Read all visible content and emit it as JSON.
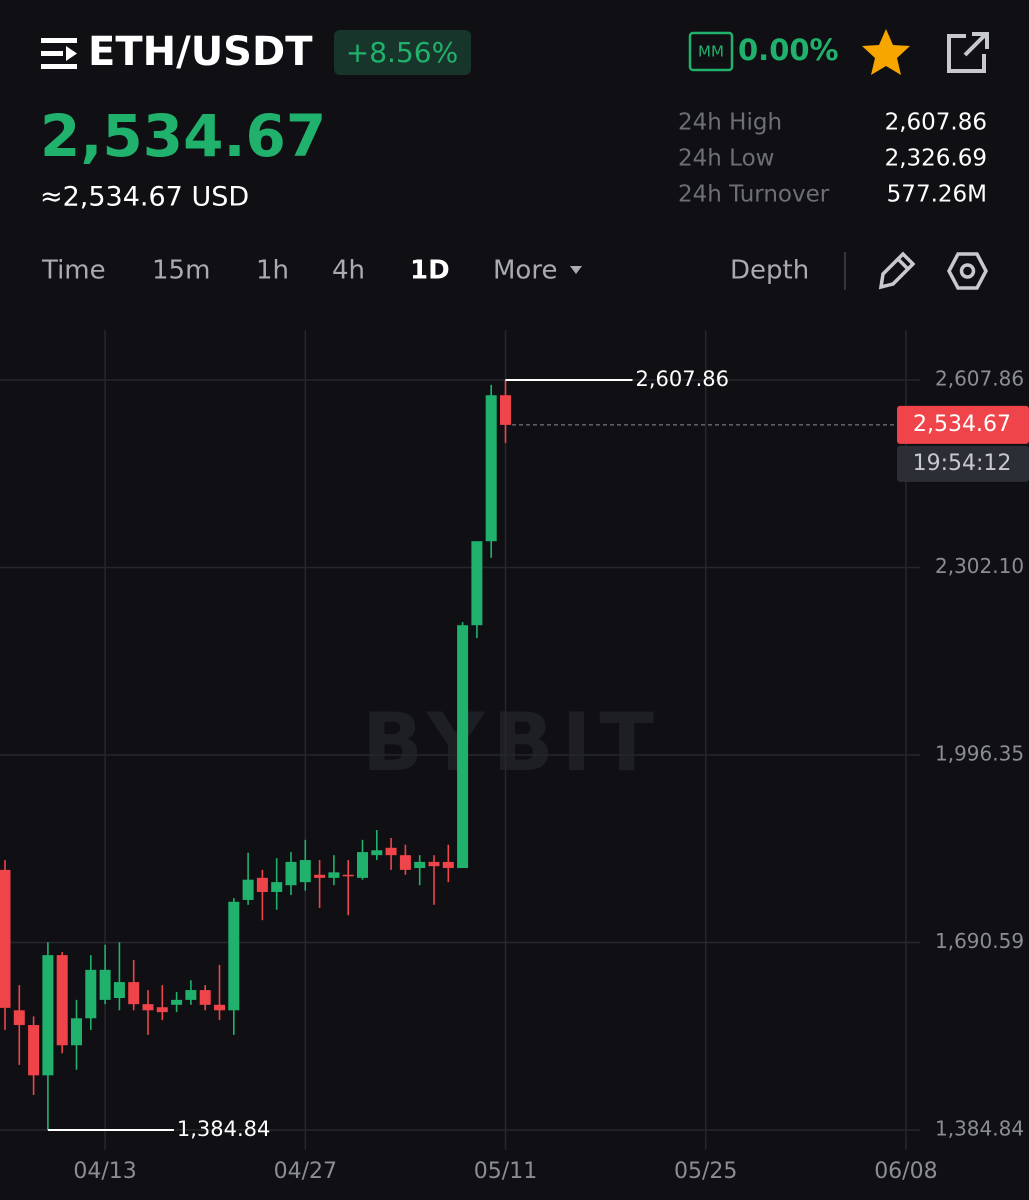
{
  "header": {
    "pair": "ETH/USDT",
    "change": "+8.56%",
    "mm_badge": "MM",
    "mm_rate": "0.00%",
    "price": "2,534.67",
    "price_usd": "≈2,534.67 USD",
    "stats": [
      {
        "label": "24h High",
        "value": "2,607.86"
      },
      {
        "label": "24h Low",
        "value": "2,326.69"
      },
      {
        "label": "24h Turnover",
        "value": "577.26M"
      }
    ]
  },
  "tabs": [
    "Time",
    "15m",
    "1h",
    "4h",
    "1D",
    "More",
    "Depth"
  ],
  "active_tab": "1D",
  "watermark": "BYBIT",
  "chart_data": {
    "type": "candlestick",
    "categories": [
      null,
      null,
      null,
      null,
      null,
      null,
      null,
      "04/13",
      null,
      null,
      null,
      null,
      null,
      null,
      null,
      null,
      null,
      null,
      null,
      null,
      null,
      "04/27",
      null,
      null,
      null,
      null,
      null,
      null,
      null,
      null,
      null,
      null,
      null,
      null,
      null,
      "05/11",
      null,
      null,
      null,
      null,
      null,
      null,
      null,
      null,
      null,
      null,
      null,
      null,
      null,
      "05/25",
      null,
      null,
      null,
      null,
      null,
      null,
      null,
      null,
      null,
      null,
      null,
      null,
      null,
      "06/08"
    ],
    "open": [
      1809,
      1580,
      1556,
      1474,
      1670,
      1523,
      1567,
      1597,
      1600,
      1626,
      1590,
      1585,
      1589,
      1597,
      1613,
      1589,
      1580,
      1760,
      1796,
      1773,
      1784,
      1789,
      1801,
      1796,
      1801,
      1796,
      1833,
      1845,
      1833,
      1812,
      1822,
      1822,
      1812,
      2208,
      2345,
      2583,
      null,
      null,
      null,
      null,
      null,
      null,
      null,
      null,
      null,
      null,
      null,
      null,
      null,
      null,
      null,
      null,
      null,
      null,
      null,
      null,
      null,
      null,
      null,
      null,
      null,
      null,
      null,
      null
    ],
    "high": [
      1825,
      1621,
      1570,
      1691,
      1675,
      1597,
      1670,
      1687,
      1691,
      1662,
      1613,
      1621,
      1610,
      1629,
      1621,
      1654,
      1763,
      1837,
      1809,
      1828,
      1838,
      1858,
      1825,
      1833,
      1825,
      1858,
      1874,
      1861,
      1850,
      1833,
      1833,
      1850,
      2213,
      2345,
      2600,
      2607.86,
      null,
      null,
      null,
      null,
      null,
      null,
      null,
      null,
      null,
      null,
      null,
      null,
      null,
      null,
      null,
      null,
      null,
      null,
      null,
      null,
      null,
      null,
      null,
      null,
      null,
      null,
      null,
      null
    ],
    "low": [
      1548,
      1491,
      1442,
      1384.84,
      1510,
      1483,
      1548,
      1590,
      1580,
      1580,
      1540,
      1564,
      1577,
      1589,
      1580,
      1564,
      1540,
      1752,
      1727,
      1744,
      1768,
      1775,
      1747,
      1784,
      1735,
      1793,
      1825,
      1809,
      1801,
      1784,
      1752,
      1789,
      1812,
      2187,
      2318,
      2505,
      null,
      null,
      null,
      null,
      null,
      null,
      null,
      null,
      null,
      null,
      null,
      null,
      null,
      null,
      null,
      null,
      null,
      null,
      null,
      null,
      null,
      null,
      null,
      null,
      null,
      null,
      null,
      null
    ],
    "close": [
      1584,
      1556,
      1474,
      1670,
      1523,
      1567,
      1646,
      1646,
      1626,
      1590,
      1580,
      1577,
      1597,
      1613,
      1589,
      1580,
      1757,
      1793,
      1773,
      1789,
      1822,
      1825,
      1796,
      1805,
      1799,
      1838,
      1841,
      1833,
      1809,
      1822,
      1815,
      1812,
      2208,
      2345,
      2583,
      2534.67,
      null,
      null,
      null,
      null,
      null,
      null,
      null,
      null,
      null,
      null,
      null,
      null,
      null,
      null,
      null,
      null,
      null,
      null,
      null,
      null,
      null,
      null,
      null,
      null,
      null,
      null,
      null,
      null
    ],
    "up_color": "#20b26c",
    "down_color": "#ef454a",
    "ylim": [
      1352.2,
      2689.4
    ],
    "yticks": [
      {
        "value": 2607.86,
        "label": "2,607.86"
      },
      {
        "value": 2302.1,
        "label": "2,302.10"
      },
      {
        "value": 1996.35,
        "label": "1,996.35"
      },
      {
        "value": 1690.59,
        "label": "1,690.59"
      },
      {
        "value": 1384.84,
        "label": "1,384.84"
      }
    ],
    "grid": true,
    "high_marker": {
      "value": 2607.86,
      "label": "2,607.86"
    },
    "low_marker": {
      "value": 1384.84,
      "label": "1,384.84"
    },
    "price_line": {
      "value": 2534.67,
      "label": "2,534.67",
      "countdown": "19:54:12"
    }
  }
}
